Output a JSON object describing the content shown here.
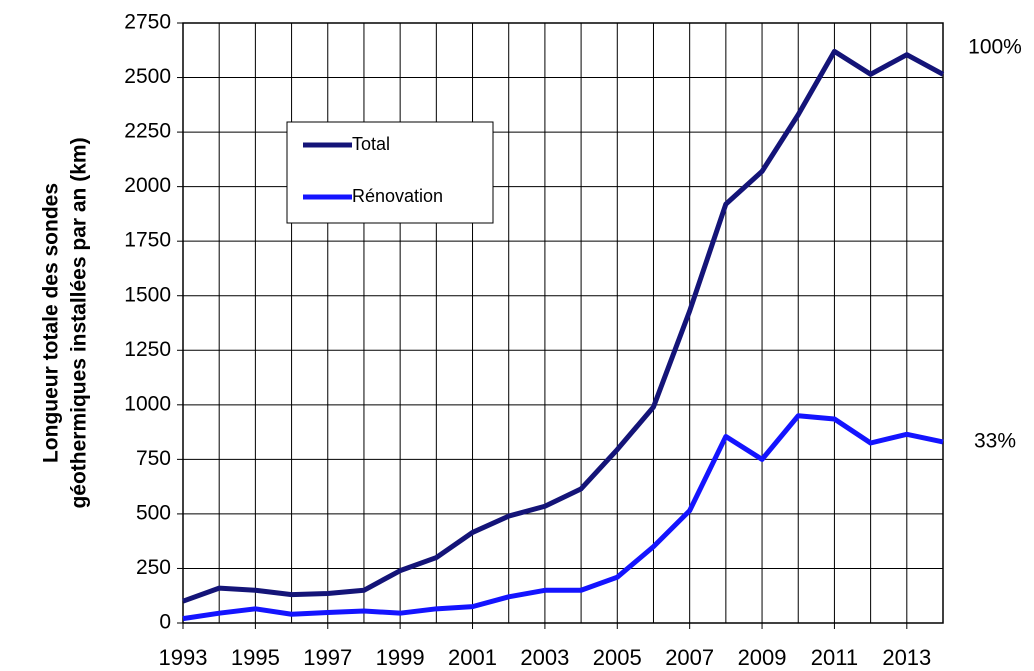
{
  "chart_data": {
    "type": "line",
    "y_label": [
      "Longueur totale des sondes",
      "géothermiques installées par an (km)"
    ],
    "x": [
      1993,
      1994,
      1995,
      1996,
      1997,
      1998,
      1999,
      2000,
      2001,
      2002,
      2003,
      2004,
      2005,
      2006,
      2007,
      2008,
      2009,
      2010,
      2011,
      2012,
      2013,
      2014
    ],
    "series": [
      {
        "name": "Total",
        "color": "#141478",
        "values": [
          100,
          160,
          150,
          130,
          135,
          150,
          240,
          300,
          415,
          490,
          535,
          615,
          795,
          990,
          1430,
          1920,
          2070,
          2330,
          2620,
          2515,
          2605,
          2515
        ]
      },
      {
        "name": "Rénovation",
        "color": "#1414ff",
        "values": [
          20,
          45,
          65,
          40,
          48,
          55,
          45,
          65,
          75,
          120,
          150,
          150,
          210,
          350,
          515,
          855,
          750,
          950,
          935,
          825,
          865,
          830
        ]
      }
    ],
    "annotations": [
      "100%",
      "33%"
    ],
    "xlim": [
      1993,
      2014
    ],
    "xticks": [
      1993,
      1995,
      1997,
      1999,
      2001,
      2003,
      2005,
      2007,
      2009,
      2011,
      2013
    ],
    "ylim": [
      0,
      2750
    ],
    "yticks": [
      0,
      250,
      500,
      750,
      1000,
      1250,
      1500,
      1750,
      2000,
      2250,
      2500,
      2750
    ],
    "grid": true
  }
}
